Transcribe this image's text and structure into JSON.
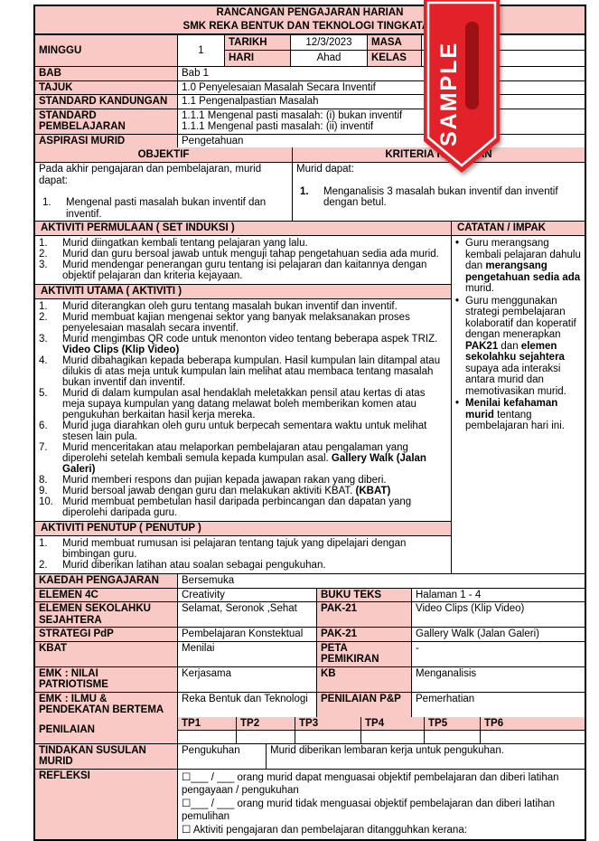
{
  "colors": {
    "pink": "#f8c9c5",
    "ribbon_red": "#e32128",
    "ribbon_dark": "#9c1016",
    "border": "#000000"
  },
  "header": {
    "title1": "RANCANGAN PENGAJARAN HARIAN",
    "title2": "SMK REKA BENTUK DAN TEKNOLOGI TINGKATAN"
  },
  "ribbon": {
    "label": "SAMPLE"
  },
  "info": {
    "minggu_label": "MINGGU",
    "minggu_value": "1",
    "tarikh_label": "TARIKH",
    "tarikh_value": "12/3/2023",
    "masa_label": "MASA",
    "masa_value": "",
    "hari_label": "HARI",
    "hari_value": "Ahad",
    "kelas_label": "KELAS",
    "kelas_value": "",
    "rows": [
      {
        "label": "BAB",
        "value": "Bab 1"
      },
      {
        "label": "TAJUK",
        "value": "1.0 Penyelesaian Masalah Secara Inventif"
      },
      {
        "label": "STANDARD KANDUNGAN",
        "value": "1.1 Pengenalpastian Masalah"
      },
      {
        "label": "STANDARD\nPEMBELAJARAN",
        "value": "1.1.1 Mengenal pasti masalah: (i) bukan inventif\n1.1.1 Mengenal pasti masalah: (ii) inventif"
      },
      {
        "label": "ASPIRASI MURID",
        "value": "Pengetahuan"
      }
    ]
  },
  "objektif": {
    "header": "OBJEKTIF",
    "intro": "Pada akhir pengajaran dan pembelajaran, murid dapat:",
    "items": [
      "Mengenal pasti masalah bukan inventif dan inventif."
    ]
  },
  "kriteria": {
    "header": "KRITERIA KEJAYAAN",
    "intro": "Murid dapat:",
    "items": [
      "Menganalisis 3 masalah bukan inventif dan inventif dengan betul."
    ]
  },
  "activities": {
    "catatan_header": "CATATAN / IMPAK",
    "sections": [
      {
        "header": "AKTIVITI PERMULAAN ( SET INDUKSI )",
        "items": [
          "Murid diingatkan kembali tentang pelajaran yang lalu.",
          "Murid dan guru bersoal jawab untuk menguji tahap pengetahuan sedia ada murid.",
          "Murid mendengar penerangan guru tentang isi pelajaran dan kaitannya dengan objektif pelajaran dan kriteria kejayaan."
        ]
      },
      {
        "header": "AKTIVITI UTAMA ( AKTIVITI )",
        "items": [
          "Murid diterangkan oleh guru tentang masalah bukan inventif dan inventif.",
          "Murid membuat kajian mengenai sektor yang banyak melaksanakan proses penyelesaian masalah secara inventif.",
          "Murid mengimbas QR code untuk menonton video tentang beberapa aspek TRIZ. **Video Clips (Klip Video)**",
          "Murid dibahagikan kepada beberapa kumpulan. Hasil kumpulan lain ditampal atau dilukis di atas meja untuk kumpulan lain melihat atau membaca tentang masalah bukan inventif dan inventif.",
          "Murid di dalam kumpulan asal hendaklah meletakkan pensil atau kertas di atas meja supaya kumpulan yang datang melawat boleh memberikan komen atau pengukuhan berkaitan hasil kerja mereka.",
          "Murid juga diarahkan oleh guru untuk berpecah sementara waktu untuk melihat stesen lain pula.",
          "Murid menceritakan atau melaporkan pembelajaran atau pengalaman yang diperolehi setelah kembali semula kepada kumpulan asal. **Gallery Walk (Jalan Galeri)**",
          "Murid memberi respons dan pujian kepada jawapan rakan yang diberi.",
          "Murid bersoal jawab dengan guru dan melakukan aktiviti KBAT. **(KBAT)**",
          "Murid membuat pembetulan hasil daripada perbincangan dan dapatan yang diperolehi daripada guru."
        ]
      },
      {
        "header": "AKTIVITI PENUTUP ( PENUTUP )",
        "items": [
          "Murid membuat rumusan isi pelajaran tentang tajuk yang dipelajari dengan bimbingan guru.",
          "Murid diberikan latihan atau soalan sebagai pengukuhan."
        ]
      }
    ],
    "catatan_items": [
      "Guru merangsang kembali pelajaran dahulu dan **merangsang pengetahuan sedia ada** murid.",
      "Guru menggunakan strategi pembelajaran kolaboratif dan koperatif dengan menerapkan **PAK21** dan **elemen sekolahku sejahtera** supaya ada interaksi antara murid dan memotivasikan murid.",
      "**Menilai kefahaman murid** tentang pembelajaran hari ini."
    ]
  },
  "details": {
    "kaedah_label": "KAEDAH PENGAJARAN",
    "kaedah_value": "Bersemuka",
    "rows": [
      {
        "l1": "ELEMEN 4C",
        "v1": "Creativity",
        "l2": "BUKU TEKS",
        "v2": "Halaman 1 - 4"
      },
      {
        "l1": "ELEMEN SEKOLAHKU\nSEJAHTERA",
        "v1": "Selamat, Seronok ,Sehat",
        "l2": "PAK-21",
        "v2": "Video Clips (Klip Video)"
      },
      {
        "l1": "STRATEGI PdP",
        "v1": "Pembelajaran Konstektual",
        "l2": "PAK-21",
        "v2": "Gallery Walk (Jalan Galeri)"
      },
      {
        "l1": "KBAT",
        "v1": "Menilai",
        "l2": "PETA PEMIKIRAN",
        "v2": "-"
      },
      {
        "l1": "EMK : NILAI\nPATRIOTISME",
        "v1": "Kerjasama",
        "l2": "KB",
        "v2": "Menganalisis"
      },
      {
        "l1": "EMK : ILMU &\nPENDEKATAN BERTEMA",
        "v1": "Reka Bentuk dan Teknologi",
        "l2": "PENILAIAN P&P",
        "v2": "Pemerhatian"
      }
    ]
  },
  "penilaian": {
    "label": "PENILAIAN",
    "tp": [
      "TP1",
      "TP2",
      "TP3",
      "TP4",
      "TP5",
      "TP6"
    ]
  },
  "tindakan": {
    "label": "TINDAKAN SUSULAN\nMURID",
    "value1": "Pengukuhan",
    "value2": "Murid diberikan lembaran kerja untuk pengukuhan."
  },
  "refleksi": {
    "label": "REFLEKSI",
    "lines": [
      "☐___ / ___ orang murid dapat menguasai objektif pembelajaran dan diberi latihan pengayaan / pengukuhan",
      "☐___ / ___ orang murid tidak menguasai objektif pembelajaran dan diberi latihan pemulihan",
      "☐ Aktiviti pengajaran dan pembelajaran ditangguhkan kerana:"
    ]
  }
}
